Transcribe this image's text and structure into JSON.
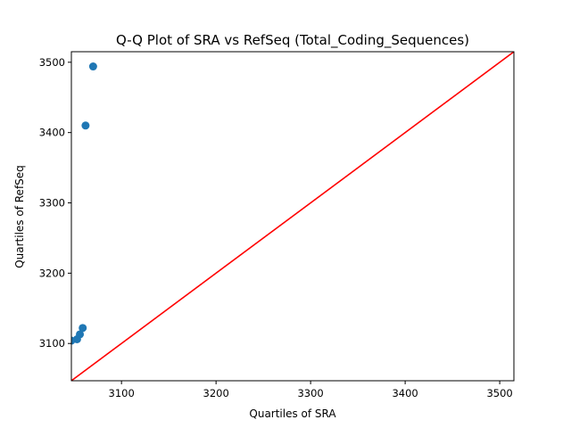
{
  "chart_data": {
    "type": "scatter",
    "title": "Q-Q Plot of SRA vs RefSeq (Total_Coding_Sequences)",
    "xlabel": "Quartiles of SRA",
    "ylabel": "Quartiles of RefSeq",
    "xlim": [
      3047,
      3515
    ],
    "ylim": [
      3047,
      3515
    ],
    "x_ticks": [
      3100,
      3200,
      3300,
      3400,
      3500
    ],
    "y_ticks": [
      3100,
      3200,
      3300,
      3400,
      3500
    ],
    "points": [
      {
        "x": 3047,
        "y": 3104
      },
      {
        "x": 3053,
        "y": 3106
      },
      {
        "x": 3056,
        "y": 3113
      },
      {
        "x": 3059,
        "y": 3122
      },
      {
        "x": 3062,
        "y": 3410
      },
      {
        "x": 3070,
        "y": 3494
      }
    ],
    "reference_line": {
      "from": [
        3047,
        3047
      ],
      "to": [
        3515,
        3515
      ],
      "color": "#ff0000"
    },
    "marker_color": "#1f77b4",
    "grid": false,
    "legend": "none"
  }
}
